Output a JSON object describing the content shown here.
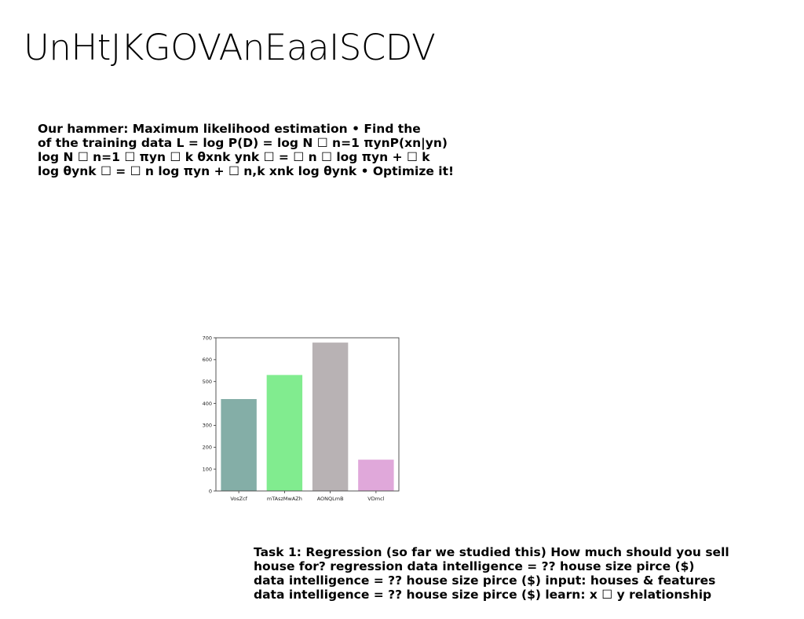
{
  "slide": {
    "title": "UnHtJKGOVAnEaaISCDV",
    "paragraph1_lines": [
      "Our hammer: Maximum likelihood estimation • Find the",
      "of the training data L = log P(D) = log N ☐ n=1 πynP(xn|yn)",
      "log N ☐ n=1 ☐ πyn ☐ k θxnk ynk ☐ = ☐ n ☐ log πyn + ☐ k",
      "log θynk ☐ = ☐ n log πyn + ☐ n,k xnk log θynk • Optimize it!"
    ],
    "paragraph2_lines": [
      "Task 1: Regression (so far we studied this) How much should you sell",
      "house for? regression data intelligence = ?? house size pirce ($)",
      "data intelligence = ?? house size pirce ($) input: houses & features",
      "data intelligence = ?? house size pirce ($) learn: x ☐ y relationship"
    ]
  },
  "chart_data": {
    "type": "bar",
    "categories": [
      "VosZcf",
      "mTAszMwAZh",
      "AONQLmB",
      "VDmcl"
    ],
    "values": [
      420,
      530,
      678,
      143
    ],
    "colors": [
      "#84aea7",
      "#81ec8f",
      "#b8b2b4",
      "#e0a8da"
    ],
    "ylim": [
      0,
      700
    ],
    "yticks": [
      0,
      100,
      200,
      300,
      400,
      500,
      600,
      700
    ],
    "grid": false,
    "title": "",
    "xlabel": "",
    "ylabel": ""
  }
}
